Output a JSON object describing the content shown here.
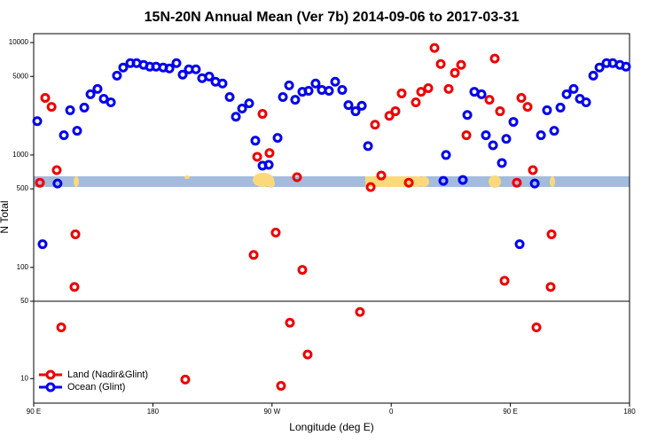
{
  "chart_data": [
    {
      "type": "scatter",
      "title": "15N-20N Annual Mean (Ver 7b)   2014-09-06 to 2017-03-31",
      "ylabel": "N Total",
      "log_y": true,
      "xlim": [
        90,
        540
      ],
      "ylim": [
        50,
        12000
      ],
      "yticks": [
        100,
        500,
        1000,
        5000,
        10000
      ],
      "series": [
        {
          "name": "Land (Nadir&Glint)",
          "color": "#ee0000",
          "x": [
            94.7,
            98.7,
            103.5,
            107.4,
            121.5,
            120.8,
            256.1,
            258.8,
            262.8,
            268.1,
            272.8,
            288.9,
            292.9,
            344.5,
            347.8,
            352.5,
            358.6,
            363.2,
            367.9,
            373.3,
            378.6,
            382.6,
            388,
            392.7,
            397.4,
            403.4,
            408.1,
            412.8,
            416.8,
            434.2,
            438.2,
            442.2,
            445.6,
            454.9,
            458.3,
            463,
            467,
            481.1,
            480.4
          ],
          "values": [
            567,
            3220,
            2680,
            733,
            197,
            67,
            129,
            964,
            2320,
            1040,
            204,
            634,
            95,
            518,
            1860,
            656,
            2230,
            2450,
            3530,
            567,
            2940,
            3650,
            3930,
            8960,
            6450,
            3870,
            5370,
            6330,
            1500,
            3100,
            7200,
            2450,
            76,
            567,
            3220,
            2680,
            733,
            197,
            67
          ]
        },
        {
          "name": "Ocean (Glint)",
          "color": "#0000ee",
          "x": [
            92.7,
            96.7,
            108,
            112.8,
            117.5,
            122.8,
            128.2,
            132.9,
            138.2,
            142.9,
            148.3,
            152.9,
            157.6,
            163,
            167.7,
            173,
            177.7,
            182.4,
            187.8,
            192.5,
            197.8,
            202.5,
            207.2,
            212.5,
            217.2,
            222.6,
            227.3,
            232.6,
            238,
            242.7,
            247.4,
            252.7,
            257.4,
            262.8,
            267.5,
            274.2,
            278.2,
            282.9,
            287.5,
            292.9,
            297.6,
            302.9,
            307.6,
            313,
            317.7,
            323,
            327.7,
            333.1,
            337.8,
            342.5,
            399.4,
            401.4,
            414.1,
            417.5,
            422.8,
            428.2,
            431.5,
            436.9,
            443.6,
            446.9,
            452.3,
            457,
            468.4,
            473.1,
            477.7,
            483.1,
            487.8,
            492.5,
            497.8,
            502.5,
            507.2,
            512.6,
            517.3,
            522.6,
            527.3,
            532.7,
            537.3
          ],
          "values": [
            2000,
            161,
            557,
            1500,
            2500,
            1640,
            2640,
            3470,
            3870,
            3160,
            2940,
            5080,
            6000,
            6560,
            6560,
            6330,
            6110,
            6110,
            6000,
            5890,
            6560,
            5180,
            5780,
            5780,
            4820,
            4990,
            4480,
            4320,
            3280,
            2190,
            2590,
            2880,
            1340,
            803,
            818,
            1420,
            3280,
            4160,
            3100,
            3650,
            3720,
            4320,
            3790,
            3720,
            4480,
            3790,
            2780,
            2450,
            2740,
            1200,
            589,
            1000,
            600,
            2270,
            3650,
            3470,
            1500,
            1220,
            849,
            1390,
            1970,
            161,
            557,
            1500,
            2500,
            1640,
            2640,
            3470,
            3870,
            3160,
            2940,
            5080,
            6000,
            6560,
            6560,
            6330,
            6110
          ]
        }
      ]
    },
    {
      "type": "scatter",
      "xlabel": "Longitude (deg E)",
      "log_y": true,
      "legend": "lower left",
      "xlim": [
        90,
        540
      ],
      "xticks": [
        {
          "value": 90,
          "label": "90 E"
        },
        180,
        {
          "value": 270,
          "label": "90 W"
        },
        {
          "value": 360,
          "label": "0"
        },
        {
          "value": 450,
          "label": "90 E"
        },
        {
          "value": 540,
          "label": "180"
        }
      ],
      "ylim": [
        6,
        50
      ],
      "yticks": [
        10,
        50
      ],
      "series": [
        {
          "name": "Land (Nadir&Glint)",
          "color": "#ee0000",
          "x": [
            110.8,
            204.5,
            276.8,
            283.5,
            296.9,
            336.4,
            469.7
          ],
          "values": [
            29,
            9.8,
            8.6,
            32,
            16.5,
            40,
            29
          ]
        },
        {
          "name": "Ocean (Glint)",
          "color": "#0000ee",
          "x": [],
          "values": []
        }
      ]
    }
  ]
}
